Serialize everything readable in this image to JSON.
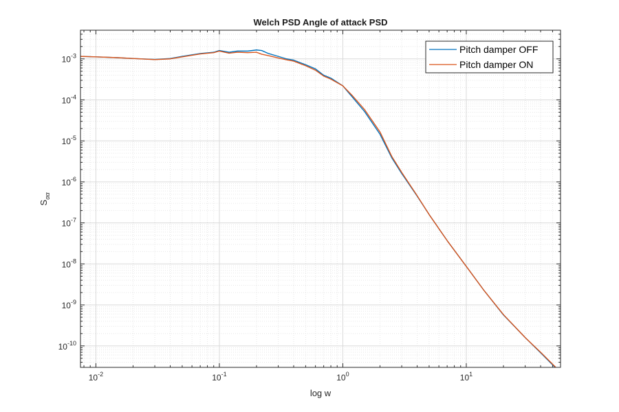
{
  "chart_data": {
    "type": "line",
    "title": "Welch PSD Angle of attack PSD",
    "xlabel": "log w",
    "ylabel": "S",
    "ylabel_subscript": "αα",
    "x_scale": "log",
    "y_scale": "log",
    "xlim": [
      0.0075,
      58
    ],
    "ylim": [
      3e-11,
      0.005
    ],
    "grid": true,
    "minor_grid": true,
    "legend_position": "top-right",
    "x_ticks": [
      {
        "value": 0.01,
        "base": "10",
        "exp": "-2"
      },
      {
        "value": 0.1,
        "base": "10",
        "exp": "-1"
      },
      {
        "value": 1,
        "base": "10",
        "exp": "0"
      },
      {
        "value": 10,
        "base": "10",
        "exp": "1"
      }
    ],
    "y_ticks": [
      {
        "value": 1e-10,
        "base": "10",
        "exp": "-10"
      },
      {
        "value": 1e-09,
        "base": "10",
        "exp": "-9"
      },
      {
        "value": 1e-08,
        "base": "10",
        "exp": "-8"
      },
      {
        "value": 1e-07,
        "base": "10",
        "exp": "-7"
      },
      {
        "value": 1e-06,
        "base": "10",
        "exp": "-6"
      },
      {
        "value": 1e-05,
        "base": "10",
        "exp": "-5"
      },
      {
        "value": 0.0001,
        "base": "10",
        "exp": "-4"
      },
      {
        "value": 0.001,
        "base": "10",
        "exp": "-3"
      }
    ],
    "series": [
      {
        "name": "Pitch damper OFF",
        "color": "#0072BD",
        "x": [
          0.0075,
          0.01,
          0.015,
          0.02,
          0.03,
          0.04,
          0.05,
          0.07,
          0.09,
          0.1,
          0.12,
          0.14,
          0.17,
          0.2,
          0.22,
          0.25,
          0.3,
          0.35,
          0.4,
          0.5,
          0.6,
          0.7,
          0.8,
          1.0,
          1.2,
          1.5,
          2.0,
          2.5,
          3.0,
          4.0,
          5.0,
          7.0,
          10.0,
          14.0,
          20.0,
          30.0,
          40.0,
          58.0
        ],
        "y": [
          0.00115,
          0.00112,
          0.00107,
          0.00102,
          0.00097,
          0.00102,
          0.00115,
          0.00135,
          0.00145,
          0.0016,
          0.00145,
          0.00155,
          0.00155,
          0.00165,
          0.0016,
          0.00135,
          0.00115,
          0.001,
          0.00093,
          0.00072,
          0.00057,
          0.0004,
          0.00034,
          0.00022,
          0.000115,
          5.2e-05,
          1.45e-05,
          3.8e-06,
          1.6e-06,
          4.5e-07,
          1.6e-07,
          3.7e-08,
          8.7e-09,
          2.2e-09,
          5.7e-10,
          1.6e-10,
          6.8e-11,
          2.2e-11
        ]
      },
      {
        "name": "Pitch damper ON",
        "color": "#D95319",
        "x": [
          0.0075,
          0.01,
          0.015,
          0.02,
          0.03,
          0.04,
          0.05,
          0.07,
          0.09,
          0.1,
          0.12,
          0.14,
          0.17,
          0.2,
          0.22,
          0.25,
          0.3,
          0.35,
          0.4,
          0.5,
          0.6,
          0.7,
          0.8,
          1.0,
          1.2,
          1.5,
          2.0,
          2.5,
          3.0,
          4.0,
          5.0,
          7.0,
          10.0,
          14.0,
          20.0,
          30.0,
          40.0,
          58.0
        ],
        "y": [
          0.00115,
          0.00112,
          0.00107,
          0.00102,
          0.00096,
          0.001,
          0.00112,
          0.00132,
          0.00142,
          0.00155,
          0.00138,
          0.00145,
          0.00142,
          0.00145,
          0.0013,
          0.0012,
          0.00105,
          0.00095,
          0.00088,
          0.00068,
          0.00053,
          0.00038,
          0.00032,
          0.00022,
          0.000125,
          5.8e-05,
          1.65e-05,
          4.1e-06,
          1.7e-06,
          4.6e-07,
          1.6e-07,
          3.7e-08,
          8.7e-09,
          2.2e-09,
          5.8e-10,
          1.6e-10,
          7e-11,
          2.3e-11
        ]
      }
    ]
  }
}
